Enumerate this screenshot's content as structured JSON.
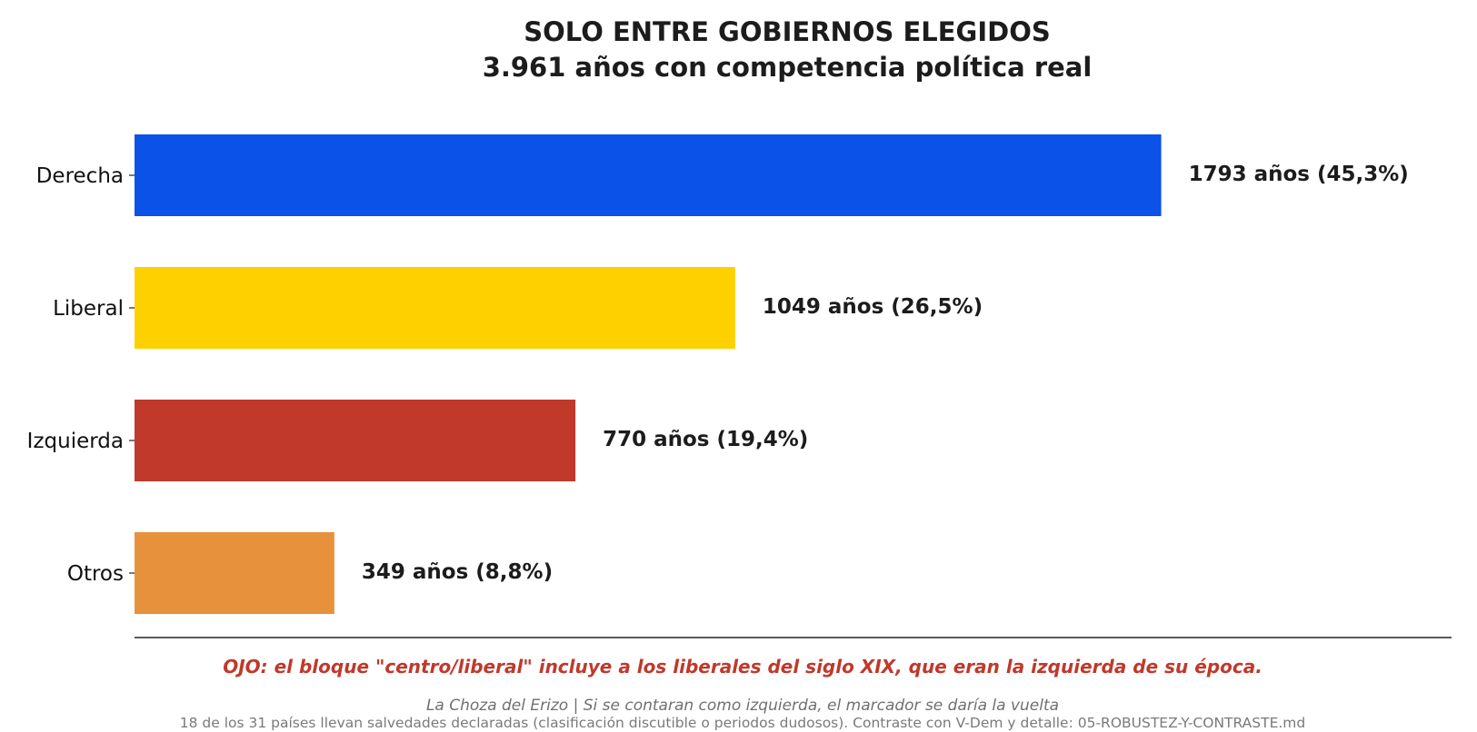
{
  "chart_data": {
    "type": "bar",
    "orientation": "horizontal",
    "title": "SOLO ENTRE GOBIERNOS ELEGIDOS",
    "subtitle": "3.961 años con competencia política real",
    "categories": [
      "Derecha",
      "Liberal",
      "Izquierda",
      "Otros"
    ],
    "values": [
      1793,
      1049,
      770,
      349
    ],
    "value_labels": [
      "1793 años  (45,3%)",
      "1049 años  (26,5%)",
      "770 años  (19,4%)",
      "349 años  (8,8%)"
    ],
    "colors": [
      "#0b52e8",
      "#ffd000",
      "#c0392b",
      "#e8913c"
    ],
    "xlim": [
      0,
      2300
    ],
    "grid": false,
    "x_axis_visible": false
  },
  "notes": {
    "warning": "OJO: el bloque \"centro/liberal\" incluye a los liberales del siglo XIX, que eran la izquierda de su época.",
    "warning_color": "#c0392b",
    "credit": "La Choza del Erizo  |  Si se contaran como izquierda, el marcador se daría la vuelta",
    "footnote": "18 de los 31 países llevan salvedades declaradas (clasificación discutible o periodos dudosos). Contraste con V-Dem y detalle: 05-ROBUSTEZ-Y-CONTRASTE.md"
  }
}
